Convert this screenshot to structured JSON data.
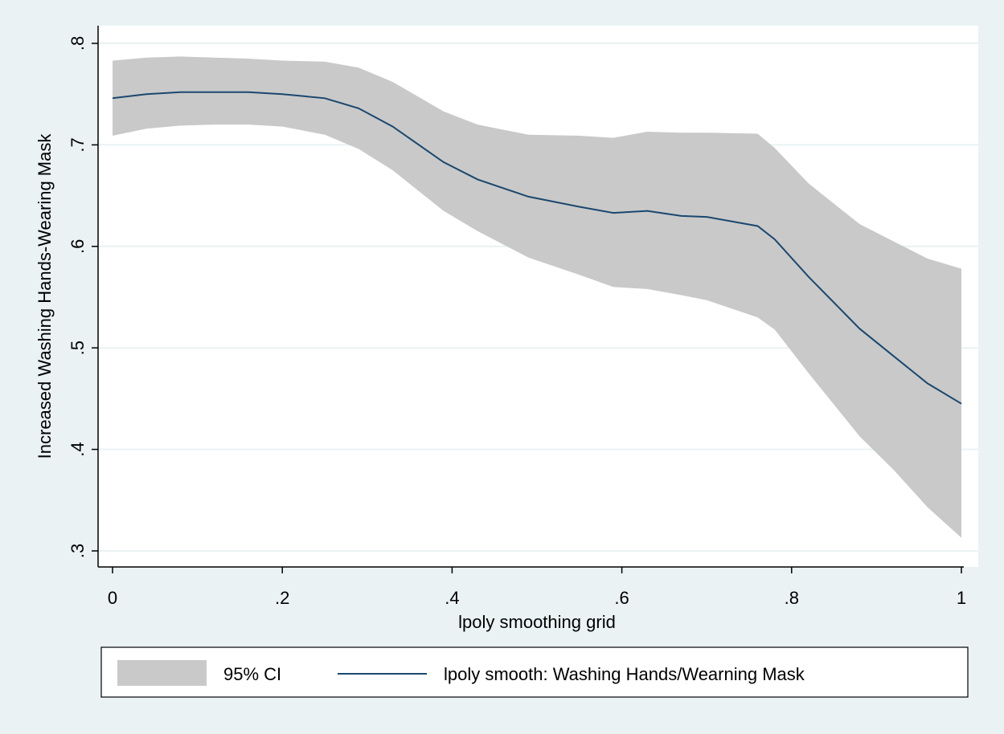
{
  "colors": {
    "page_background": "#eaf2f3",
    "plot_background": "#ffffff",
    "grid": "#eaf2f3",
    "ci_fill": "#c9c9c9",
    "line": "#1a476f",
    "axis": "#000000"
  },
  "chart_data": {
    "type": "area",
    "x_label": "lpoly smoothing grid",
    "y_label": "Increased Washing Hands-Wearing Mask",
    "xlim": [
      0,
      1
    ],
    "ylim": [
      0.3,
      0.8
    ],
    "x_ticks": [
      {
        "value": 0,
        "label": "0"
      },
      {
        "value": 0.2,
        "label": ".2"
      },
      {
        "value": 0.4,
        "label": ".4"
      },
      {
        "value": 0.6,
        "label": ".6"
      },
      {
        "value": 0.8,
        "label": ".8"
      },
      {
        "value": 1,
        "label": "1"
      }
    ],
    "y_ticks": [
      {
        "value": 0.3,
        "label": ".3"
      },
      {
        "value": 0.4,
        "label": ".4"
      },
      {
        "value": 0.5,
        "label": ".5"
      },
      {
        "value": 0.6,
        "label": ".6"
      },
      {
        "value": 0.7,
        "label": ".7"
      },
      {
        "value": 0.8,
        "label": ".8"
      }
    ],
    "grid": true,
    "legend_position": "bottom",
    "ci_series": {
      "name": "95% CI",
      "x": [
        0.0,
        0.04,
        0.08,
        0.12,
        0.16,
        0.2,
        0.25,
        0.29,
        0.33,
        0.39,
        0.43,
        0.49,
        0.55,
        0.59,
        0.63,
        0.67,
        0.7,
        0.76,
        0.78,
        0.82,
        0.88,
        0.92,
        0.96,
        1.0
      ],
      "upper": [
        0.783,
        0.786,
        0.787,
        0.786,
        0.785,
        0.783,
        0.782,
        0.776,
        0.762,
        0.733,
        0.72,
        0.71,
        0.709,
        0.707,
        0.713,
        0.712,
        0.712,
        0.711,
        0.697,
        0.662,
        0.622,
        0.605,
        0.588,
        0.578
      ],
      "lower": [
        0.709,
        0.716,
        0.719,
        0.72,
        0.72,
        0.718,
        0.71,
        0.696,
        0.675,
        0.635,
        0.615,
        0.589,
        0.572,
        0.56,
        0.558,
        0.552,
        0.547,
        0.53,
        0.518,
        0.475,
        0.413,
        0.38,
        0.343,
        0.313
      ]
    },
    "series": [
      {
        "name": "lpoly smooth: Washing Hands/Wearning Mask",
        "x": [
          0.0,
          0.04,
          0.08,
          0.12,
          0.16,
          0.2,
          0.25,
          0.29,
          0.33,
          0.39,
          0.43,
          0.49,
          0.55,
          0.59,
          0.63,
          0.67,
          0.7,
          0.76,
          0.78,
          0.82,
          0.88,
          0.92,
          0.96,
          1.0
        ],
        "y": [
          0.746,
          0.75,
          0.752,
          0.752,
          0.752,
          0.75,
          0.746,
          0.736,
          0.718,
          0.683,
          0.666,
          0.649,
          0.639,
          0.633,
          0.635,
          0.63,
          0.629,
          0.62,
          0.607,
          0.57,
          0.519,
          0.492,
          0.465,
          0.445
        ]
      }
    ]
  }
}
